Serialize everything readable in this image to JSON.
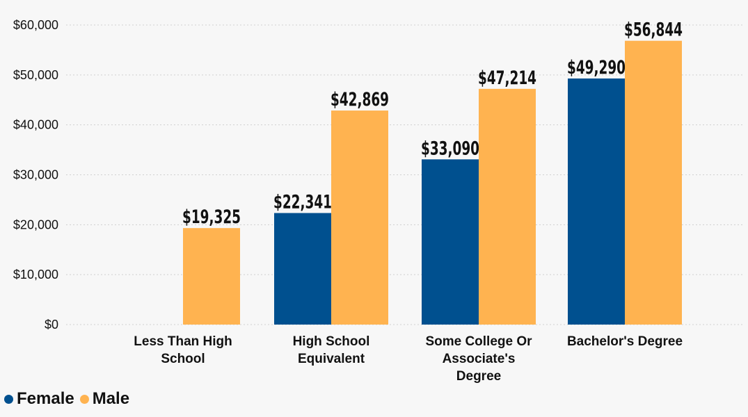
{
  "colors": {
    "female": "#00508f",
    "male": "#ffb350",
    "grid": "#d0d0d0"
  },
  "chart_data": {
    "type": "bar",
    "categories": [
      [
        "Less Than High",
        "School"
      ],
      [
        "High School",
        "Equivalent"
      ],
      [
        "Some College Or",
        "Associate's",
        "Degree"
      ],
      [
        "Bachelor's Degree"
      ]
    ],
    "series": [
      {
        "name": "Female",
        "values": [
          null,
          22341,
          33090,
          49290
        ],
        "labels": [
          "",
          "$22,341",
          "$33,090",
          "$49,290"
        ]
      },
      {
        "name": "Male",
        "values": [
          19325,
          42869,
          47214,
          56844
        ],
        "labels": [
          "$19,325",
          "$42,869",
          "$47,214",
          "$56,844"
        ]
      }
    ],
    "yticks": [
      0,
      10000,
      20000,
      30000,
      40000,
      50000,
      60000
    ],
    "ytick_labels": [
      "$0",
      "$10,000",
      "$20,000",
      "$30,000",
      "$40,000",
      "$50,000",
      "$60,000"
    ],
    "ylim": [
      0,
      60000
    ],
    "grid": true,
    "legend_position": "bottom-left"
  }
}
